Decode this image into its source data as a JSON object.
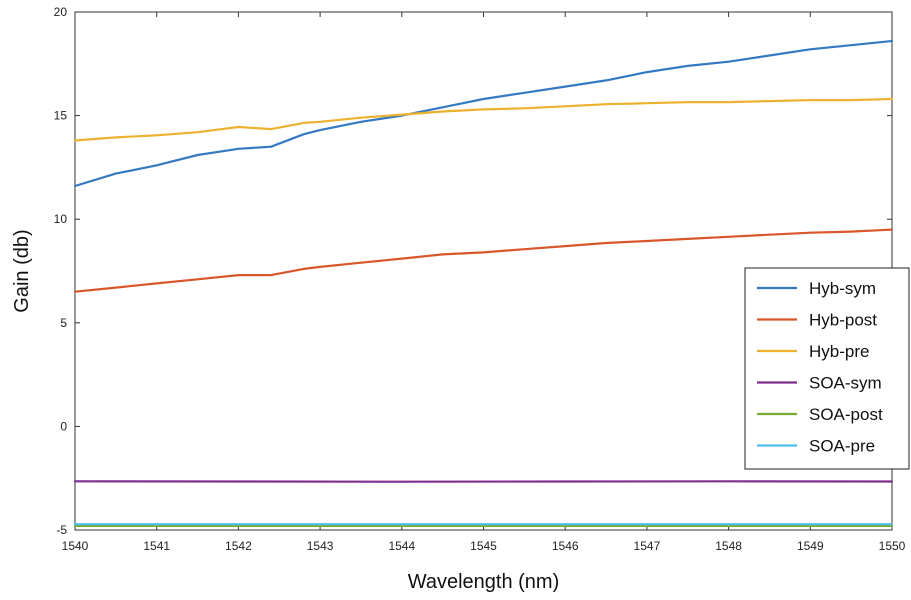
{
  "chart_data": {
    "type": "line",
    "title": "",
    "xlabel": "Wavelength (nm)",
    "ylabel": "Gain (db)",
    "xlim": [
      1540,
      1550
    ],
    "ylim": [
      -5,
      20
    ],
    "x_ticks": [
      1540,
      1541,
      1542,
      1543,
      1544,
      1545,
      1546,
      1547,
      1548,
      1549,
      1550
    ],
    "y_ticks": [
      -5,
      0,
      5,
      10,
      15,
      20
    ],
    "grid": false,
    "legend_position": "right",
    "series": [
      {
        "name": "Hyb-sym",
        "color": "#3579c3",
        "x": [
          1540,
          1540.5,
          1541,
          1541.5,
          1542,
          1542.4,
          1542.8,
          1543,
          1543.5,
          1544,
          1544.5,
          1545,
          1545.5,
          1546,
          1546.5,
          1547,
          1547.5,
          1548,
          1548.5,
          1549,
          1549.5,
          1550
        ],
        "y": [
          11.6,
          12.2,
          12.6,
          13.1,
          13.4,
          13.5,
          14.1,
          14.3,
          14.7,
          15.0,
          15.4,
          15.8,
          16.1,
          16.4,
          16.7,
          17.1,
          17.4,
          17.6,
          17.9,
          18.2,
          18.4,
          18.6
        ]
      },
      {
        "name": "Hyb-post",
        "color": "#d9562a",
        "x": [
          1540,
          1540.5,
          1541,
          1541.5,
          1542,
          1542.4,
          1542.8,
          1543,
          1543.5,
          1544,
          1544.5,
          1545,
          1545.5,
          1546,
          1546.5,
          1547,
          1547.5,
          1548,
          1548.5,
          1549,
          1549.5,
          1550
        ],
        "y": [
          6.5,
          6.7,
          6.9,
          7.1,
          7.3,
          7.3,
          7.6,
          7.7,
          7.9,
          8.1,
          8.3,
          8.4,
          8.55,
          8.7,
          8.85,
          8.95,
          9.05,
          9.15,
          9.25,
          9.35,
          9.4,
          9.5
        ]
      },
      {
        "name": "Hyb-pre",
        "color": "#ecb12f",
        "x": [
          1540,
          1540.5,
          1541,
          1541.5,
          1542,
          1542.4,
          1542.8,
          1543,
          1543.5,
          1544,
          1544.5,
          1545,
          1545.5,
          1546,
          1546.5,
          1547,
          1547.5,
          1548,
          1548.5,
          1549,
          1549.5,
          1550
        ],
        "y": [
          13.8,
          13.95,
          14.05,
          14.2,
          14.45,
          14.35,
          14.65,
          14.7,
          14.9,
          15.05,
          15.2,
          15.3,
          15.35,
          15.45,
          15.55,
          15.6,
          15.65,
          15.65,
          15.7,
          15.75,
          15.75,
          15.8
        ]
      },
      {
        "name": "SOA-sym",
        "color": "#7e2f8e",
        "x": [
          1540,
          1542,
          1544,
          1546,
          1548,
          1550
        ],
        "y": [
          -2.65,
          -2.66,
          -2.67,
          -2.66,
          -2.65,
          -2.66
        ]
      },
      {
        "name": "SOA-post",
        "color": "#77ac30",
        "x": [
          1540,
          1542,
          1544,
          1546,
          1548,
          1550
        ],
        "y": [
          -4.8,
          -4.8,
          -4.8,
          -4.8,
          -4.8,
          -4.8
        ]
      },
      {
        "name": "SOA-pre",
        "color": "#4dbeee",
        "x": [
          1540,
          1542,
          1544,
          1546,
          1548,
          1550
        ],
        "y": [
          -4.72,
          -4.72,
          -4.72,
          -4.72,
          -4.72,
          -4.72
        ]
      }
    ]
  }
}
